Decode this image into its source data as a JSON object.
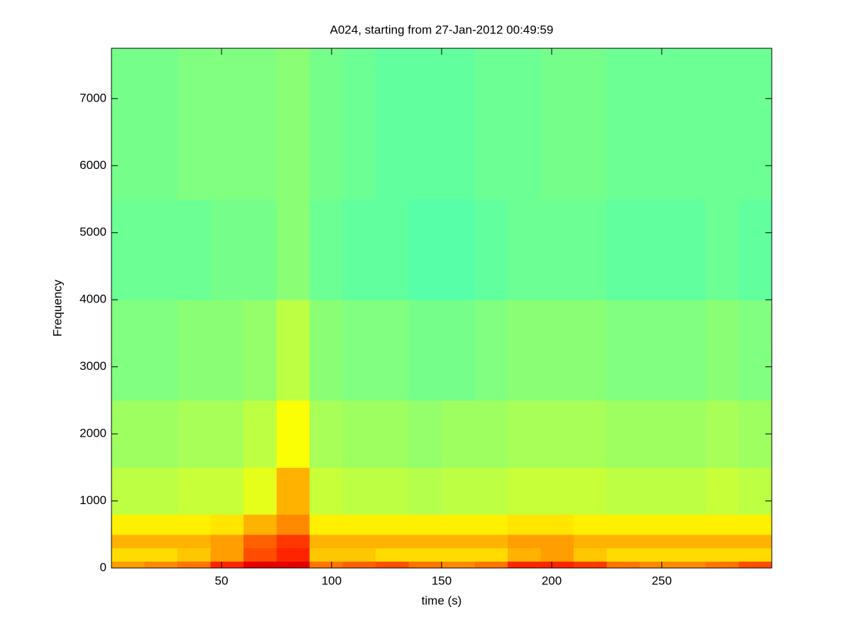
{
  "chart_data": {
    "type": "heatmap",
    "title": "A024, starting from 27-Jan-2012 00:49:59",
    "xlabel": "time (s)",
    "ylabel": "Frequency",
    "colormap": "jet",
    "clim": [
      0,
      1
    ],
    "xlim": [
      0,
      300
    ],
    "ylim": [
      0,
      7750
    ],
    "xticks": [
      50,
      100,
      150,
      200,
      250
    ],
    "yticks": [
      0,
      1000,
      2000,
      3000,
      4000,
      5000,
      6000,
      7000
    ],
    "xbins": [
      0,
      15,
      30,
      45,
      60,
      75,
      90,
      105,
      120,
      135,
      150,
      165,
      180,
      195,
      210,
      225,
      240,
      255,
      270,
      285,
      300
    ],
    "ybins": [
      0,
      100,
      300,
      500,
      800,
      1500,
      2500,
      4000,
      5500,
      7750
    ],
    "values": [
      [
        0.72,
        0.74,
        0.76,
        0.84,
        0.9,
        0.9,
        0.76,
        0.78,
        0.8,
        0.76,
        0.74,
        0.76,
        0.84,
        0.84,
        0.82,
        0.76,
        0.74,
        0.74,
        0.76,
        0.8
      ],
      [
        0.66,
        0.66,
        0.68,
        0.72,
        0.8,
        0.84,
        0.68,
        0.68,
        0.66,
        0.66,
        0.66,
        0.66,
        0.7,
        0.72,
        0.68,
        0.66,
        0.66,
        0.66,
        0.66,
        0.66
      ],
      [
        0.7,
        0.7,
        0.7,
        0.72,
        0.78,
        0.82,
        0.7,
        0.7,
        0.7,
        0.7,
        0.7,
        0.7,
        0.72,
        0.72,
        0.7,
        0.7,
        0.7,
        0.7,
        0.7,
        0.7
      ],
      [
        0.64,
        0.64,
        0.64,
        0.65,
        0.7,
        0.74,
        0.64,
        0.64,
        0.64,
        0.64,
        0.64,
        0.64,
        0.65,
        0.65,
        0.64,
        0.64,
        0.64,
        0.64,
        0.64,
        0.64
      ],
      [
        0.56,
        0.56,
        0.57,
        0.57,
        0.6,
        0.7,
        0.57,
        0.56,
        0.56,
        0.55,
        0.56,
        0.56,
        0.57,
        0.57,
        0.57,
        0.56,
        0.56,
        0.56,
        0.57,
        0.56
      ],
      [
        0.53,
        0.53,
        0.54,
        0.54,
        0.56,
        0.62,
        0.54,
        0.53,
        0.53,
        0.52,
        0.53,
        0.53,
        0.54,
        0.54,
        0.54,
        0.53,
        0.53,
        0.53,
        0.54,
        0.53
      ],
      [
        0.5,
        0.5,
        0.51,
        0.51,
        0.52,
        0.56,
        0.51,
        0.5,
        0.5,
        0.49,
        0.49,
        0.5,
        0.51,
        0.51,
        0.51,
        0.5,
        0.5,
        0.5,
        0.51,
        0.5
      ],
      [
        0.48,
        0.48,
        0.48,
        0.49,
        0.49,
        0.51,
        0.48,
        0.47,
        0.47,
        0.46,
        0.46,
        0.47,
        0.48,
        0.48,
        0.48,
        0.47,
        0.47,
        0.47,
        0.48,
        0.47
      ],
      [
        0.49,
        0.49,
        0.5,
        0.5,
        0.5,
        0.51,
        0.49,
        0.48,
        0.47,
        0.47,
        0.47,
        0.48,
        0.48,
        0.49,
        0.49,
        0.48,
        0.48,
        0.48,
        0.48,
        0.48
      ]
    ]
  }
}
